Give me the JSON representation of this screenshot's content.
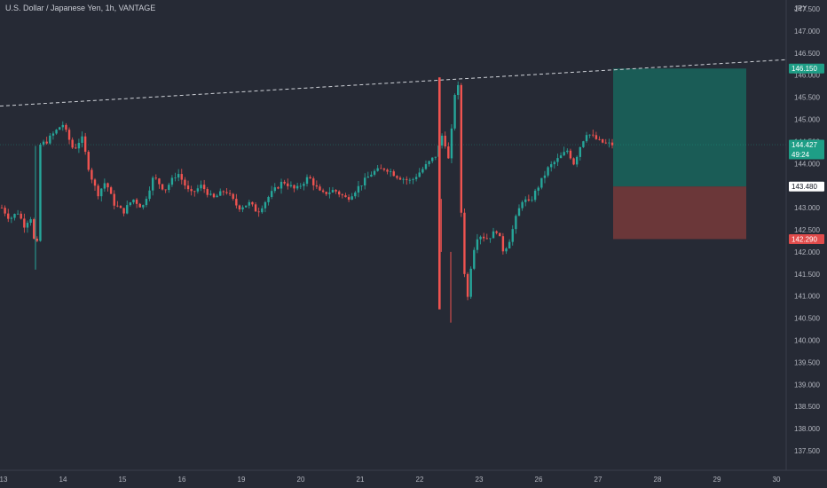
{
  "chart_data": {
    "type": "candlestick",
    "title": "U.S. Dollar / Japanese Yen, 1h, VANTAGE",
    "currency": "JPY",
    "y_ticks": [
      137.5,
      138.0,
      138.5,
      139.0,
      139.5,
      140.0,
      140.5,
      141.0,
      141.5,
      142.0,
      142.5,
      143.0,
      143.5,
      144.0,
      144.5,
      145.0,
      145.5,
      146.0,
      146.5,
      147.0,
      147.5
    ],
    "y_tick_labels": [
      "137.500",
      "138.000",
      "138.500",
      "139.000",
      "139.500",
      "140.000",
      "140.500",
      "141.000",
      "141.500",
      "142.000",
      "142.500",
      "143.000",
      "143.500",
      "144.000",
      "144.500",
      "145.000",
      "145.500",
      "146.000",
      "146.500",
      "147.000",
      "147.500"
    ],
    "ylim": [
      137.2,
      148.0
    ],
    "x_ticks": [
      "13",
      "14",
      "15",
      "16",
      "19",
      "20",
      "21",
      "22",
      "23",
      "26",
      "27",
      "28",
      "29",
      "30"
    ],
    "price_markers": {
      "take_profit": {
        "value": 146.15,
        "label": "146.150",
        "color": "#1e9e86"
      },
      "current": {
        "value": 144.427,
        "label": "144.427",
        "countdown": "49:24",
        "color": "#1e9e86"
      },
      "entry": {
        "value": 143.48,
        "label": "143.480",
        "color": "#ffffff"
      },
      "stop_loss": {
        "value": 142.29,
        "label": "142.290",
        "color": "#e04b4b"
      }
    },
    "position_box": {
      "type": "long",
      "entry": 143.48,
      "take_profit": 146.15,
      "stop_loss": 142.29,
      "profit_color": "#1a5c56",
      "loss_color": "#6b3739"
    },
    "trendline": {
      "style": "dashed",
      "color": "#cfd2d8",
      "from": 145.3,
      "to": 146.35
    },
    "colors": {
      "up": "#26a69a",
      "down": "#ef5350",
      "background": "#262a35",
      "axis_text": "#b2b5be"
    },
    "candles_path": [
      [
        0,
        143.0
      ],
      [
        5,
        142.75
      ],
      [
        10,
        142.9
      ],
      [
        14,
        142.6
      ],
      [
        18,
        142.8
      ],
      [
        20,
        142.3
      ],
      [
        22,
        141.9
      ],
      [
        23,
        144.4
      ],
      [
        28,
        144.5
      ],
      [
        33,
        144.7
      ],
      [
        38,
        144.9
      ],
      [
        45,
        144.3
      ],
      [
        50,
        144.6
      ],
      [
        55,
        143.8
      ],
      [
        60,
        143.3
      ],
      [
        65,
        143.6
      ],
      [
        70,
        143.1
      ],
      [
        76,
        142.9
      ],
      [
        82,
        143.2
      ],
      [
        88,
        143.0
      ],
      [
        95,
        143.7
      ],
      [
        102,
        143.4
      ],
      [
        110,
        143.8
      ],
      [
        118,
        143.3
      ],
      [
        125,
        143.5
      ],
      [
        132,
        143.2
      ],
      [
        140,
        143.4
      ],
      [
        148,
        143.0
      ],
      [
        155,
        143.1
      ],
      [
        160,
        142.9
      ],
      [
        168,
        143.3
      ],
      [
        176,
        143.6
      ],
      [
        184,
        143.4
      ],
      [
        192,
        143.7
      ],
      [
        200,
        143.3
      ],
      [
        208,
        143.4
      ],
      [
        216,
        143.2
      ],
      [
        224,
        143.5
      ],
      [
        232,
        143.8
      ],
      [
        240,
        143.9
      ],
      [
        248,
        143.7
      ],
      [
        256,
        143.6
      ],
      [
        264,
        143.9
      ],
      [
        272,
        144.2
      ],
      [
        276,
        144.7
      ],
      [
        280,
        144.0
      ],
      [
        283,
        145.5
      ],
      [
        285,
        145.85
      ],
      [
        286,
        145.6
      ],
      [
        287,
        143.2
      ],
      [
        288,
        142.6
      ],
      [
        290,
        141.2
      ],
      [
        292,
        140.9
      ],
      [
        294,
        141.9
      ],
      [
        298,
        142.4
      ],
      [
        304,
        142.3
      ],
      [
        310,
        142.5
      ],
      [
        314,
        142.0
      ],
      [
        318,
        142.3
      ],
      [
        322,
        142.8
      ],
      [
        326,
        143.2
      ],
      [
        330,
        143.1
      ],
      [
        336,
        143.5
      ],
      [
        342,
        143.9
      ],
      [
        348,
        144.1
      ],
      [
        354,
        144.3
      ],
      [
        358,
        144.0
      ],
      [
        362,
        144.4
      ],
      [
        366,
        144.7
      ],
      [
        370,
        144.6
      ],
      [
        374,
        144.5
      ],
      [
        378,
        144.45
      ],
      [
        382,
        144.43
      ]
    ]
  }
}
